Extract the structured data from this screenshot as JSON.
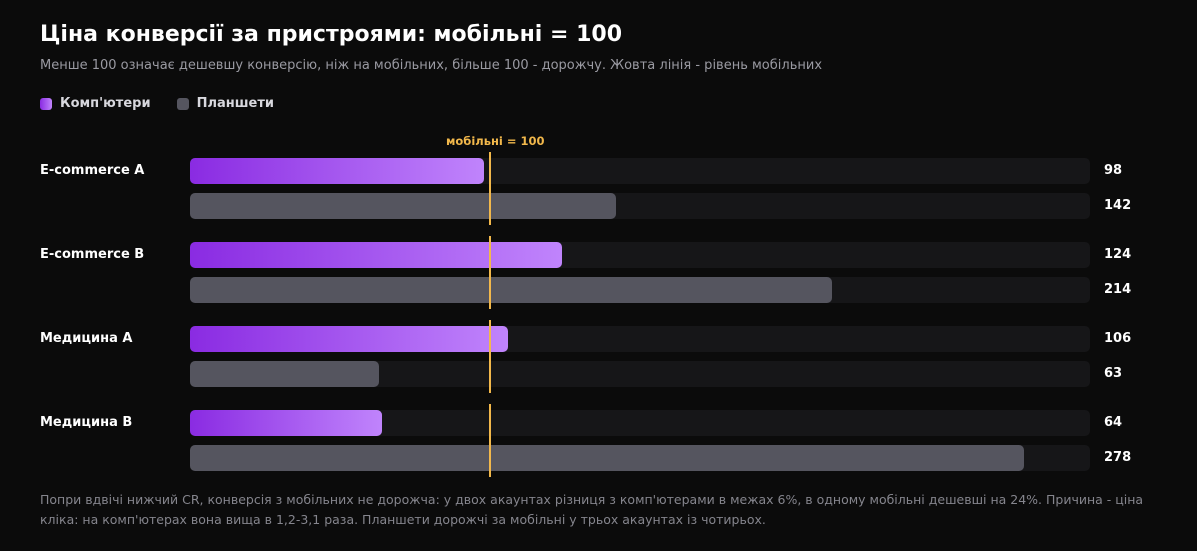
{
  "title": "Ціна конверсії за пристроями: мобільні = 100",
  "subtitle": "Менше 100 означає дешевшу конверсію, ніж на мобільних, більше 100 - дорожчу. Жовта лінія - рівень мобільних",
  "legend": [
    {
      "label": "Комп'ютери",
      "color": "#a855f7"
    },
    {
      "label": "Планшети",
      "color": "#55555f"
    }
  ],
  "reference_label": "мобільні = 100",
  "footnote": "Попри вдвічі нижчий CR, конверсія з мобільних не дорожча: у двох акаунтах різниця з комп'ютерами в межах 6%, в одному мобільні дешевші на 24%. Причина - ціна кліка: на комп'ютерах вона вища в 1,2-3,1 раза. Планшети дорожчі за мобільні у трьох акаунтах із чотирьох.",
  "chart_data": {
    "type": "bar",
    "orientation": "horizontal",
    "categories": [
      "E-commerce A",
      "E-commerce B",
      "Медицина A",
      "Медицина B"
    ],
    "series": [
      {
        "name": "Комп'ютери",
        "values": [
          98,
          124,
          106,
          64
        ],
        "color": "#a855f7"
      },
      {
        "name": "Планшети",
        "values": [
          142,
          214,
          63,
          278
        ],
        "color": "#55555f"
      }
    ],
    "reference_value": 100,
    "reference_color": "#f2b84b",
    "xlim": [
      0,
      300
    ],
    "grid": false,
    "legend_position": "top-left"
  }
}
